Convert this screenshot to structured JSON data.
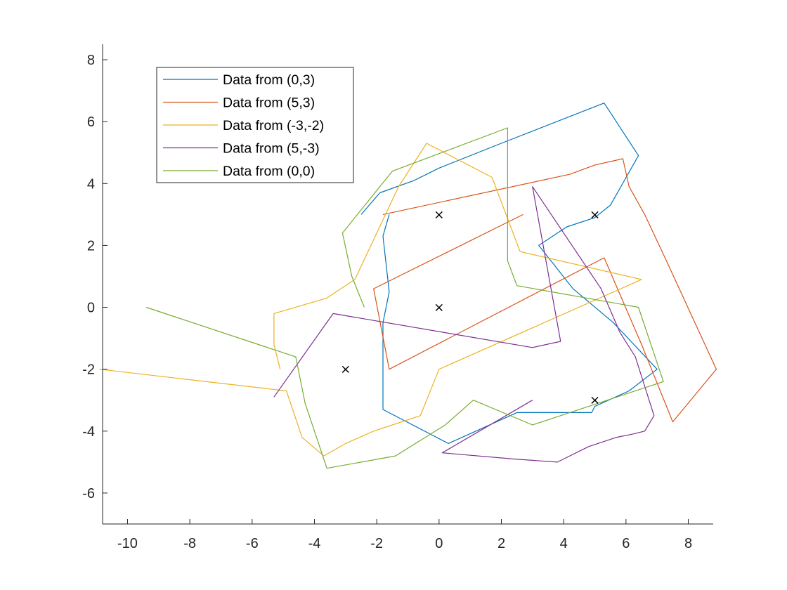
{
  "chart_data": {
    "type": "line",
    "title": "",
    "xlabel": "",
    "ylabel": "",
    "xlim": [
      -10.8,
      8.8
    ],
    "ylim": [
      -7,
      8.5
    ],
    "xticks": [
      -10,
      -8,
      -6,
      -4,
      -2,
      0,
      2,
      4,
      6,
      8
    ],
    "yticks": [
      -6,
      -4,
      -2,
      0,
      2,
      4,
      6,
      8
    ],
    "grid": false,
    "legend_position": "top-left",
    "series": [
      {
        "name": "Data from (0,3)",
        "color": "#0072BD",
        "points": [
          [
            -2.5,
            3.0
          ],
          [
            -1.9,
            3.7
          ],
          [
            -0.8,
            4.1
          ],
          [
            -0.2,
            4.4
          ],
          [
            0.0,
            4.5
          ],
          [
            2.0,
            5.3
          ],
          [
            5.3,
            6.6
          ],
          [
            6.4,
            4.9
          ],
          [
            5.5,
            3.3
          ],
          [
            5.0,
            2.9
          ],
          [
            4.1,
            2.6
          ],
          [
            3.2,
            2.0
          ],
          [
            4.3,
            0.6
          ],
          [
            5.6,
            -0.5
          ],
          [
            7.0,
            -2.0
          ],
          [
            6.1,
            -2.7
          ],
          [
            5.0,
            -3.2
          ],
          [
            4.9,
            -3.4
          ],
          [
            2.5,
            -3.4
          ],
          [
            0.3,
            -4.4
          ],
          [
            -1.8,
            -3.3
          ],
          [
            -1.8,
            -0.5
          ],
          [
            -1.6,
            0.5
          ],
          [
            -1.8,
            2.3
          ],
          [
            -1.6,
            3.0
          ]
        ]
      },
      {
        "name": "Data from (5,3)",
        "color": "#D95319",
        "points": [
          [
            2.7,
            3.0
          ],
          [
            -2.1,
            0.6
          ],
          [
            -1.6,
            -2.0
          ],
          [
            5.3,
            1.6
          ],
          [
            6.5,
            -1.2
          ],
          [
            7.5,
            -3.7
          ],
          [
            8.9,
            -2.0
          ],
          [
            7.3,
            1.5
          ],
          [
            6.6,
            3.0
          ],
          [
            6.1,
            3.9
          ],
          [
            5.9,
            4.8
          ],
          [
            5.0,
            4.6
          ],
          [
            4.2,
            4.3
          ],
          [
            -1.8,
            3.0
          ]
        ]
      },
      {
        "name": "Data from (-3,-2)",
        "color": "#EDB120",
        "points": [
          [
            -5.1,
            -2.0
          ],
          [
            -5.3,
            -1.2
          ],
          [
            -5.3,
            -0.2
          ],
          [
            -3.6,
            0.3
          ],
          [
            -2.7,
            0.9
          ],
          [
            -1.3,
            3.9
          ],
          [
            -0.4,
            5.3
          ],
          [
            1.7,
            4.2
          ],
          [
            2.6,
            1.8
          ],
          [
            6.5,
            0.9
          ],
          [
            0.0,
            -2.0
          ],
          [
            -0.6,
            -3.5
          ],
          [
            -1.5,
            -3.8
          ],
          [
            -2.1,
            -4.0
          ],
          [
            -3.0,
            -4.4
          ],
          [
            -3.7,
            -4.8
          ],
          [
            -4.4,
            -4.2
          ],
          [
            -4.9,
            -2.7
          ],
          [
            -10.9,
            -2.0
          ]
        ]
      },
      {
        "name": "Data from (5,-3)",
        "color": "#7E2F8E",
        "points": [
          [
            -5.3,
            -2.9
          ],
          [
            -3.4,
            -0.2
          ],
          [
            3.0,
            -1.3
          ],
          [
            3.9,
            -1.1
          ],
          [
            3.0,
            3.9
          ],
          [
            5.2,
            0.6
          ],
          [
            5.8,
            -0.8
          ],
          [
            6.3,
            -1.6
          ],
          [
            6.9,
            -3.5
          ],
          [
            6.6,
            -4.0
          ],
          [
            6.2,
            -4.1
          ],
          [
            5.7,
            -4.2
          ],
          [
            4.8,
            -4.5
          ],
          [
            3.8,
            -5.0
          ],
          [
            2.4,
            -4.9
          ],
          [
            0.1,
            -4.7
          ],
          [
            3.0,
            -3.0
          ]
        ]
      },
      {
        "name": "Data from (0,0)",
        "color": "#77AC30",
        "points": [
          [
            -9.4,
            0.0
          ],
          [
            -4.6,
            -1.6
          ],
          [
            -4.3,
            -3.1
          ],
          [
            -3.6,
            -5.2
          ],
          [
            -1.4,
            -4.8
          ],
          [
            0.2,
            -3.8
          ],
          [
            1.1,
            -3.0
          ],
          [
            3.0,
            -3.8
          ],
          [
            7.2,
            -2.4
          ],
          [
            6.4,
            0.0
          ],
          [
            2.5,
            0.7
          ],
          [
            2.2,
            1.5
          ],
          [
            2.2,
            5.8
          ],
          [
            -1.5,
            4.4
          ],
          [
            -3.1,
            2.4
          ],
          [
            -2.8,
            1.0
          ],
          [
            -2.4,
            0.0
          ]
        ]
      }
    ],
    "markers": [
      {
        "x": 0,
        "y": 3,
        "symbol": "×"
      },
      {
        "x": 5,
        "y": 3,
        "symbol": "×"
      },
      {
        "x": 0,
        "y": 0,
        "symbol": "×"
      },
      {
        "x": -3,
        "y": -2,
        "symbol": "×"
      },
      {
        "x": 5,
        "y": -3,
        "symbol": "×"
      }
    ]
  }
}
